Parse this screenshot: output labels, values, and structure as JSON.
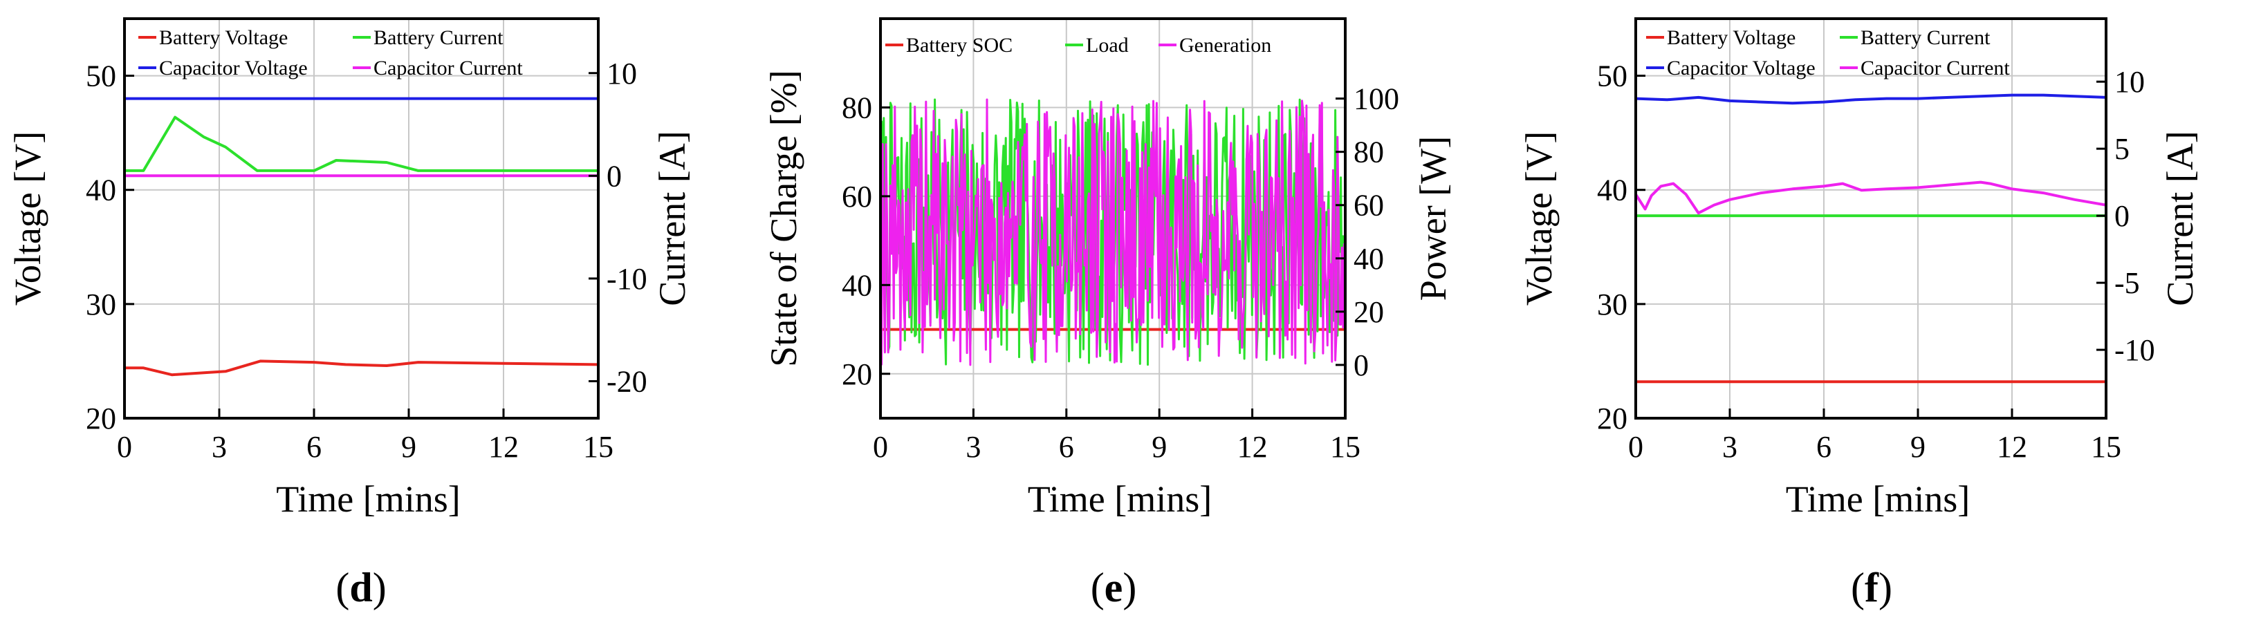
{
  "chart_data": [
    {
      "type": "line",
      "panel_label": "d",
      "xlabel": "Time  [mins]",
      "ylabel_left": "Voltage [V]",
      "ylabel_right": "Current [A]",
      "xlim": [
        0,
        15
      ],
      "ylim_left": [
        20,
        55
      ],
      "ylim_right": [
        -23.6,
        15.3
      ],
      "xticks": [
        0,
        3,
        6,
        9,
        12,
        15
      ],
      "yticks_left": [
        20,
        30,
        40,
        50
      ],
      "yticks_right": [
        -20,
        -10,
        0,
        10
      ],
      "grid": true,
      "legend": [
        "Battery Voltage",
        "Battery Current",
        "Capacitor Voltage",
        "Capacitor Current"
      ],
      "series": [
        {
          "name": "Battery Voltage",
          "axis": "left",
          "color": "#e8251f",
          "x": [
            0,
            0.6,
            1.5,
            3.2,
            4.3,
            6,
            7,
            8.3,
            9.3,
            12,
            15
          ],
          "y": [
            24.4,
            24.4,
            23.8,
            24.1,
            25.0,
            24.9,
            24.7,
            24.6,
            24.9,
            24.8,
            24.7
          ]
        },
        {
          "name": "Battery Current",
          "axis": "right",
          "color": "#2ce02c",
          "x": [
            0,
            0.6,
            1.6,
            2.5,
            3.2,
            4.2,
            6,
            6.7,
            8.3,
            9.3,
            12,
            15
          ],
          "y": [
            0.5,
            0.5,
            5.7,
            3.8,
            2.8,
            0.5,
            0.5,
            1.5,
            1.3,
            0.5,
            0.5,
            0.5
          ]
        },
        {
          "name": "Capacitor Voltage",
          "axis": "left",
          "color": "#1e1ee6",
          "x": [
            0,
            15
          ],
          "y": [
            48.0,
            48.0
          ]
        },
        {
          "name": "Capacitor Current",
          "axis": "right",
          "color": "#ee22ee",
          "x": [
            0,
            15
          ],
          "y": [
            0.0,
            0.0
          ]
        }
      ]
    },
    {
      "type": "line",
      "panel_label": "e",
      "xlabel": "Time  [mins]",
      "ylabel_left": "State of Charge [%]",
      "ylabel_right": "Power [W]",
      "xlim": [
        0,
        15
      ],
      "ylim_left": [
        10,
        100
      ],
      "ylim_right": [
        -20,
        130
      ],
      "xticks": [
        0,
        3,
        6,
        9,
        12,
        15
      ],
      "yticks_left": [
        20,
        40,
        60,
        80
      ],
      "yticks_right": [
        0,
        20,
        40,
        60,
        80,
        100
      ],
      "grid": true,
      "legend": [
        "Battery SOC",
        "Load",
        "Generation"
      ],
      "series": [
        {
          "name": "Battery SOC",
          "axis": "left",
          "color": "#e8251f",
          "x": [
            0,
            15
          ],
          "y": [
            30,
            30
          ]
        },
        {
          "name": "Load",
          "axis": "right",
          "color": "#2ce02c",
          "noise": {
            "min": 0,
            "max": 100,
            "points": 420,
            "seed": 7
          }
        },
        {
          "name": "Generation",
          "axis": "right",
          "color": "#ee22ee",
          "noise": {
            "min": 0,
            "max": 100,
            "points": 420,
            "seed": 19
          }
        }
      ]
    },
    {
      "type": "line",
      "panel_label": "f",
      "xlabel": "Time  [mins]",
      "ylabel_left": "Voltage [V]",
      "ylabel_right": "Current [A]",
      "xlim": [
        0,
        15
      ],
      "ylim_left": [
        20,
        55
      ],
      "ylim_right": [
        -15.1,
        14.7
      ],
      "xticks": [
        0,
        3,
        6,
        9,
        12,
        15
      ],
      "yticks_left": [
        20,
        30,
        40,
        50
      ],
      "yticks_right": [
        -10,
        -5,
        0,
        5,
        10
      ],
      "grid": true,
      "legend": [
        "Battery Voltage",
        "Battery Current",
        "Capacitor Voltage",
        "Capacitor Current"
      ],
      "series": [
        {
          "name": "Battery Voltage",
          "axis": "left",
          "color": "#e8251f",
          "x": [
            0,
            15
          ],
          "y": [
            23.2,
            23.2
          ]
        },
        {
          "name": "Battery Current",
          "axis": "right",
          "color": "#2ce02c",
          "x": [
            0,
            15
          ],
          "y": [
            0.0,
            0.0
          ]
        },
        {
          "name": "Capacitor Voltage",
          "axis": "left",
          "color": "#1e1ee6",
          "x": [
            0,
            1,
            2,
            3,
            4,
            5,
            6,
            7,
            8,
            9,
            10,
            11,
            12,
            13,
            14,
            15
          ],
          "y": [
            48.0,
            47.9,
            48.1,
            47.8,
            47.7,
            47.6,
            47.7,
            47.9,
            48.0,
            48.0,
            48.1,
            48.2,
            48.3,
            48.3,
            48.2,
            48.1
          ]
        },
        {
          "name": "Capacitor Current",
          "axis": "right",
          "color": "#ee22ee",
          "x": [
            0,
            0.3,
            0.5,
            0.8,
            1.2,
            1.6,
            2.0,
            2.5,
            3,
            4,
            5,
            6,
            6.6,
            7.2,
            8,
            9,
            10,
            11,
            11.3,
            12,
            13,
            14,
            15
          ],
          "y": [
            1.6,
            0.5,
            1.5,
            2.2,
            2.4,
            1.6,
            0.2,
            0.8,
            1.2,
            1.7,
            2.0,
            2.2,
            2.4,
            1.9,
            2.0,
            2.1,
            2.3,
            2.5,
            2.4,
            2.0,
            1.7,
            1.2,
            0.8
          ]
        }
      ]
    }
  ]
}
